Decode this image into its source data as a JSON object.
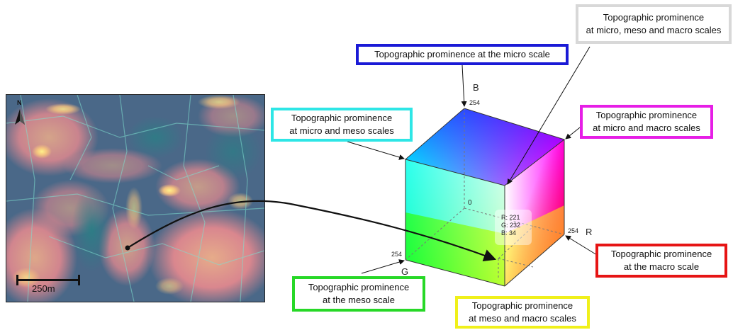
{
  "map": {
    "north_label": "N",
    "scale_bar_label": "250m"
  },
  "cube": {
    "axes": {
      "r": "R",
      "g": "G",
      "b": "B"
    },
    "ticks": {
      "origin": "0",
      "r_max": "254",
      "g_max": "254",
      "b_max": "254"
    },
    "sample": {
      "r": "R: 221",
      "g": "G: 232",
      "b": "B: 34"
    },
    "colors": {
      "red": "#ff0000",
      "green": "#00ff00",
      "blue": "#0000ff",
      "cyan": "#00ffff",
      "magenta": "#ff00ff",
      "yellow": "#ffff00",
      "white": "#ffffff"
    }
  },
  "labels": {
    "micro": "Topographic prominence at the micro scale",
    "micro_meso_macro": "Topographic prominence\nat micro, meso and macro scales",
    "micro_meso": "Topographic prominence\nat micro and meso scales",
    "micro_macro": "Topographic prominence\nat micro and macro scales",
    "macro": "Topographic prominence\nat the macro scale",
    "meso": "Topographic prominence\nat the meso scale",
    "meso_macro": "Topographic prominence\nat meso and macro scales"
  },
  "label_colors": {
    "micro": "#1a1ad6",
    "micro_meso_macro": "#d8d8d8",
    "micro_meso": "#2ee6e6",
    "micro_macro": "#e61ee6",
    "macro": "#e61414",
    "meso": "#27d827",
    "meso_macro": "#f0f01a"
  }
}
